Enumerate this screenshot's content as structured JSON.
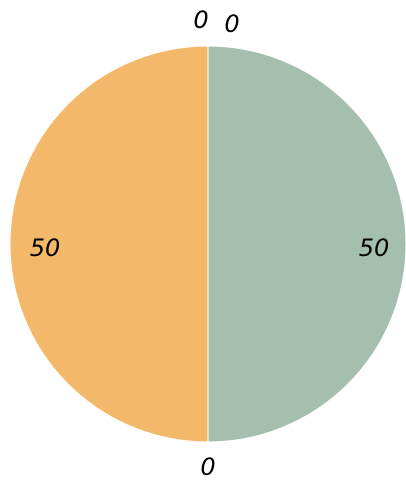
{
  "chart_data": {
    "type": "pie",
    "slices": [
      {
        "label": "0",
        "value": 0,
        "color": "#A5BFAE"
      },
      {
        "label": "50",
        "value": 50,
        "color": "#A5BFAE"
      },
      {
        "label": "0",
        "value": 0,
        "color": "#A5BFAE"
      },
      {
        "label": "50",
        "value": 50,
        "color": "#F4B86B"
      },
      {
        "label": "0",
        "value": 0,
        "color": "#F4B86B"
      }
    ],
    "title": "",
    "legend": "none"
  }
}
